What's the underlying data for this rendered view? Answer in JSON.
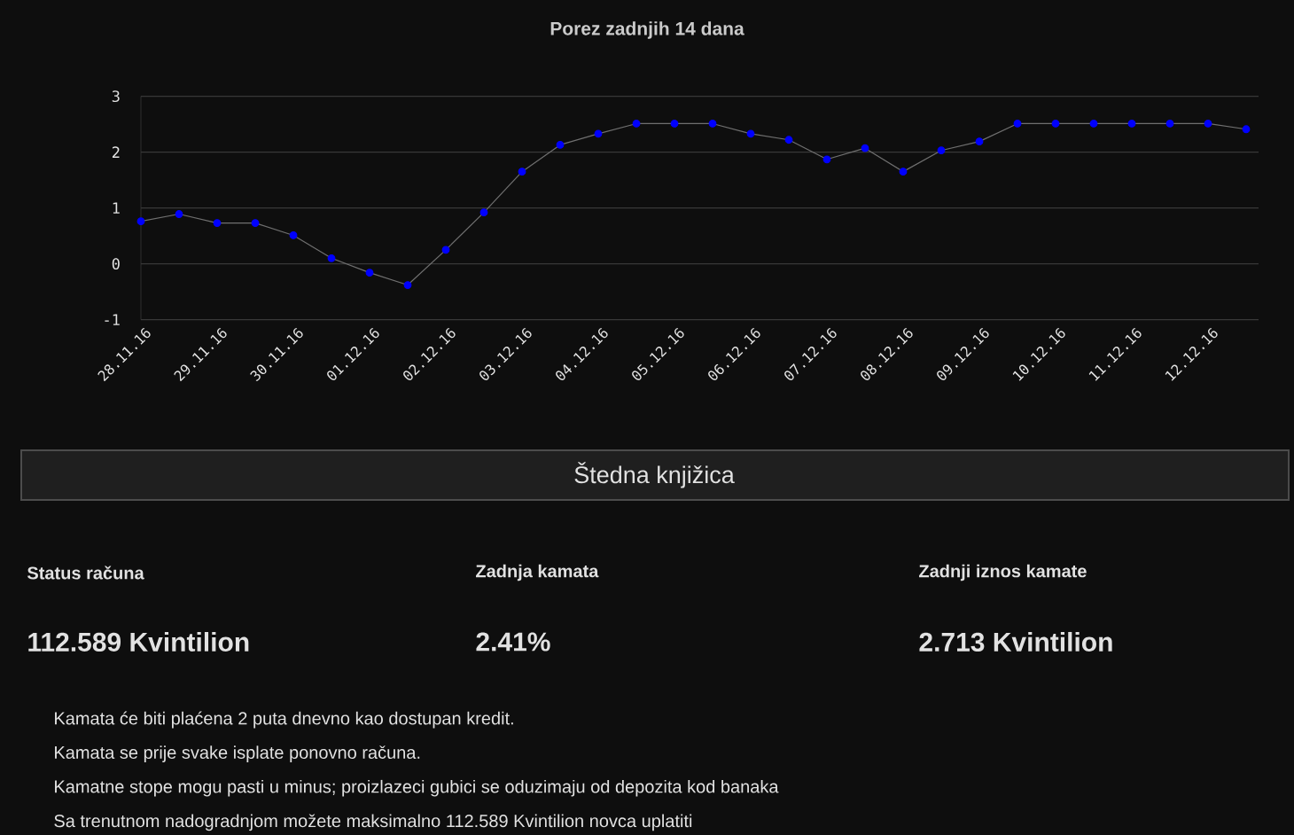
{
  "chart_data": [
    {
      "type": "line",
      "title": "Porez zadnjih 14 dana",
      "categories": [
        "28.11.16",
        null,
        "29.11.16",
        null,
        "30.11.16",
        null,
        "01.12.16",
        null,
        "02.12.16",
        null,
        "03.12.16",
        null,
        "04.12.16",
        null,
        "05.12.16",
        null,
        "06.12.16",
        null,
        "07.12.16",
        null,
        "08.12.16",
        null,
        "09.12.16",
        null,
        "10.12.16",
        null,
        "11.12.16",
        null,
        "12.12.16",
        null
      ],
      "series": [
        {
          "color": "#0000ff",
          "values": [
            0.76,
            0.89,
            0.73,
            0.73,
            0.51,
            0.1,
            -0.16,
            -0.38,
            0.25,
            0.92,
            1.65,
            2.13,
            2.33,
            2.51,
            2.51,
            2.51,
            2.33,
            2.22,
            1.87,
            2.07,
            1.65,
            2.03,
            2.19,
            2.51,
            2.51,
            2.51,
            2.51,
            2.51,
            2.51,
            2.41
          ]
        }
      ],
      "ylim": [
        -1,
        3
      ],
      "yticks": [
        -1,
        0,
        1,
        2,
        3
      ],
      "grid": "y",
      "marker": "circle"
    },
    {
      "type": "other",
      "title": "Štedna knjižica",
      "annotations": [
        "Status računa",
        "112.589 Kvintilion",
        "Zadnja kamata",
        "2.41%",
        "Zadnji iznos kamate",
        "2.713 Kvintilion",
        "Kamata će biti plaćena 2 puta dnevno kao dostupan kredit.",
        "Kamata se prije svake isplate ponovno računa.",
        "Kamatne stope mogu pasti u minus; proizlazeci gubici se oduzimaju od depozita kod banaka",
        "Sa trenutnom nadogradnjom možete maksimalno 112.589 Kvintilion novca uplatiti"
      ]
    }
  ]
}
